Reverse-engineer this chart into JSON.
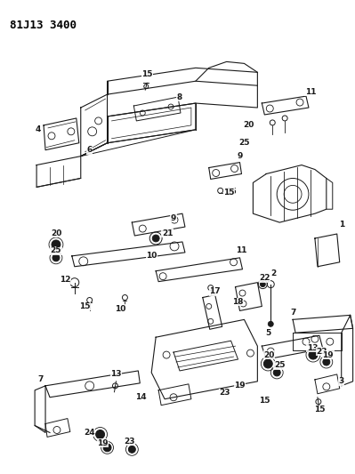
{
  "title": "81J13 3400",
  "bg": "#ffffff",
  "lc": "#1a1a1a",
  "fig_w": 3.99,
  "fig_h": 5.33,
  "dpi": 100
}
